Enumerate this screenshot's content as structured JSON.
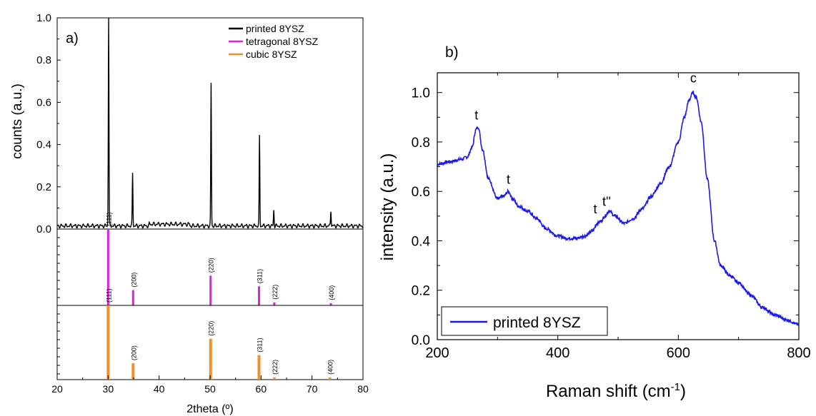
{
  "chart_data": [
    {
      "panel_label": "a)",
      "type": "line",
      "xlabel": "2theta (º)",
      "ylabel": "counts (a.u.)",
      "xlim": [
        20,
        80
      ],
      "ylim": [
        0,
        1.0
      ],
      "x_ticks": [
        "20",
        "30",
        "40",
        "50",
        "60",
        "70",
        "80"
      ],
      "y_ticks": [
        "0.0",
        "0.2",
        "0.4",
        "0.6",
        "0.8",
        "1.0"
      ],
      "legend_position": "top-right",
      "legend": [
        "printed 8YSZ",
        "tetragonal 8YSZ",
        "cubic 8YSZ"
      ],
      "colors": {
        "printed": "#000000",
        "tetragonal": "#e020e0",
        "cubic": "#f0902a"
      },
      "series": [
        {
          "name": "printed 8YSZ",
          "baseline": 0.015,
          "peaks": [
            {
              "x": 30.1,
              "y": 1.0
            },
            {
              "x": 34.8,
              "y": 0.25
            },
            {
              "x": 50.2,
              "y": 0.675
            },
            {
              "x": 59.7,
              "y": 0.425
            },
            {
              "x": 62.5,
              "y": 0.075
            },
            {
              "x": 73.7,
              "y": 0.075
            }
          ]
        },
        {
          "name": "tetragonal 8YSZ",
          "sticks": [
            {
              "x": 30.0,
              "y": 1.0,
              "label": "(111)"
            },
            {
              "x": 34.9,
              "y": 0.2,
              "label": "(200)"
            },
            {
              "x": 50.1,
              "y": 0.39,
              "label": "(220)"
            },
            {
              "x": 59.6,
              "y": 0.25,
              "label": "(311)"
            },
            {
              "x": 62.6,
              "y": 0.04,
              "label": "(222)"
            },
            {
              "x": 73.7,
              "y": 0.03,
              "label": "(400)"
            }
          ]
        },
        {
          "name": "cubic 8YSZ",
          "sticks": [
            {
              "x": 30.0,
              "y": 1.0,
              "label": "(111)"
            },
            {
              "x": 34.9,
              "y": 0.22,
              "label": "(200)"
            },
            {
              "x": 50.1,
              "y": 0.55,
              "label": "(220)"
            },
            {
              "x": 59.6,
              "y": 0.33,
              "label": "(311)"
            },
            {
              "x": 62.6,
              "y": 0.03,
              "label": "(222)"
            },
            {
              "x": 73.5,
              "y": 0.03,
              "label": "(400)"
            }
          ]
        }
      ]
    },
    {
      "panel_label": "b)",
      "type": "line",
      "xlabel": "Raman shift (cm",
      "xlabel_sup": "-1",
      "xlabel_end": ")",
      "ylabel": "intensity (a.u.)",
      "xlim": [
        200,
        800
      ],
      "ylim": [
        0.0,
        1.08
      ],
      "x_ticks": [
        "200",
        "400",
        "600",
        "800"
      ],
      "y_ticks": [
        "0.0",
        "0.2",
        "0.4",
        "0.6",
        "0.8",
        "1.0"
      ],
      "legend_position": "bottom-left",
      "legend": [
        "printed 8YSZ"
      ],
      "color": "#1a1aee",
      "series": [
        {
          "name": "printed 8YSZ",
          "x": [
            200,
            220,
            240,
            250,
            258,
            264,
            268,
            275,
            285,
            300,
            310,
            318,
            325,
            335,
            350,
            365,
            380,
            400,
            415,
            430,
            445,
            458,
            465,
            472,
            478,
            485,
            495,
            510,
            525,
            540,
            555,
            570,
            585,
            600,
            610,
            618,
            624,
            630,
            638,
            648,
            660,
            670,
            685,
            700,
            720,
            740,
            760,
            780,
            800
          ],
          "y": [
            0.71,
            0.72,
            0.73,
            0.74,
            0.78,
            0.85,
            0.86,
            0.77,
            0.65,
            0.57,
            0.58,
            0.6,
            0.57,
            0.54,
            0.52,
            0.49,
            0.45,
            0.42,
            0.41,
            0.41,
            0.42,
            0.44,
            0.47,
            0.48,
            0.5,
            0.52,
            0.5,
            0.47,
            0.49,
            0.53,
            0.58,
            0.63,
            0.7,
            0.8,
            0.9,
            0.97,
            1.0,
            0.98,
            0.88,
            0.65,
            0.4,
            0.3,
            0.26,
            0.23,
            0.18,
            0.13,
            0.1,
            0.08,
            0.06
          ]
        }
      ],
      "annotations": [
        {
          "text": "t",
          "x": 265,
          "y": 0.88
        },
        {
          "text": "t",
          "x": 318,
          "y": 0.62
        },
        {
          "text": "t",
          "x": 462,
          "y": 0.5
        },
        {
          "text": "t''",
          "x": 481,
          "y": 0.53
        },
        {
          "text": "c",
          "x": 625,
          "y": 1.03
        }
      ]
    }
  ]
}
